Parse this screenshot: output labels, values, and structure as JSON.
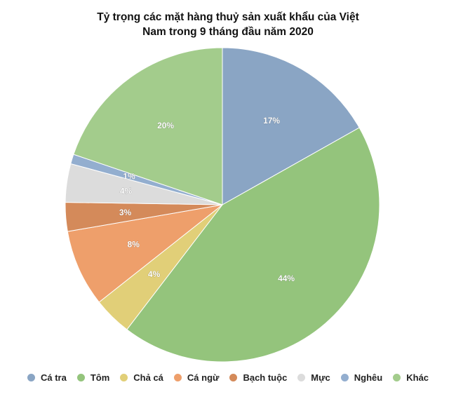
{
  "chart_data": {
    "type": "pie",
    "title_lines": [
      "Tỷ trọng các mặt hàng thuỷ sản xuất khẩu của Việt",
      "Nam trong 9 tháng đầu năm 2020"
    ],
    "slices": [
      {
        "name": "Cá tra",
        "value": 17,
        "label": "17%",
        "color": "#8aa5c4"
      },
      {
        "name": "Tôm",
        "value": 44,
        "label": "44%",
        "color": "#94c47c"
      },
      {
        "name": "Chả cá",
        "value": 4,
        "label": "4%",
        "color": "#e1cf78"
      },
      {
        "name": "Cá ngừ",
        "value": 8,
        "label": "8%",
        "color": "#ee9f6b"
      },
      {
        "name": "Bạch tuộc",
        "value": 3,
        "label": "3%",
        "color": "#d48a5a"
      },
      {
        "name": "Mực",
        "value": 4,
        "label": "4%",
        "color": "#dcdcdc"
      },
      {
        "name": "Nghêu",
        "value": 1,
        "label": "1%",
        "color": "#93aecf"
      },
      {
        "name": "Khác",
        "value": 20,
        "label": "20%",
        "color": "#a3cc8c"
      }
    ],
    "legend_position": "bottom"
  }
}
